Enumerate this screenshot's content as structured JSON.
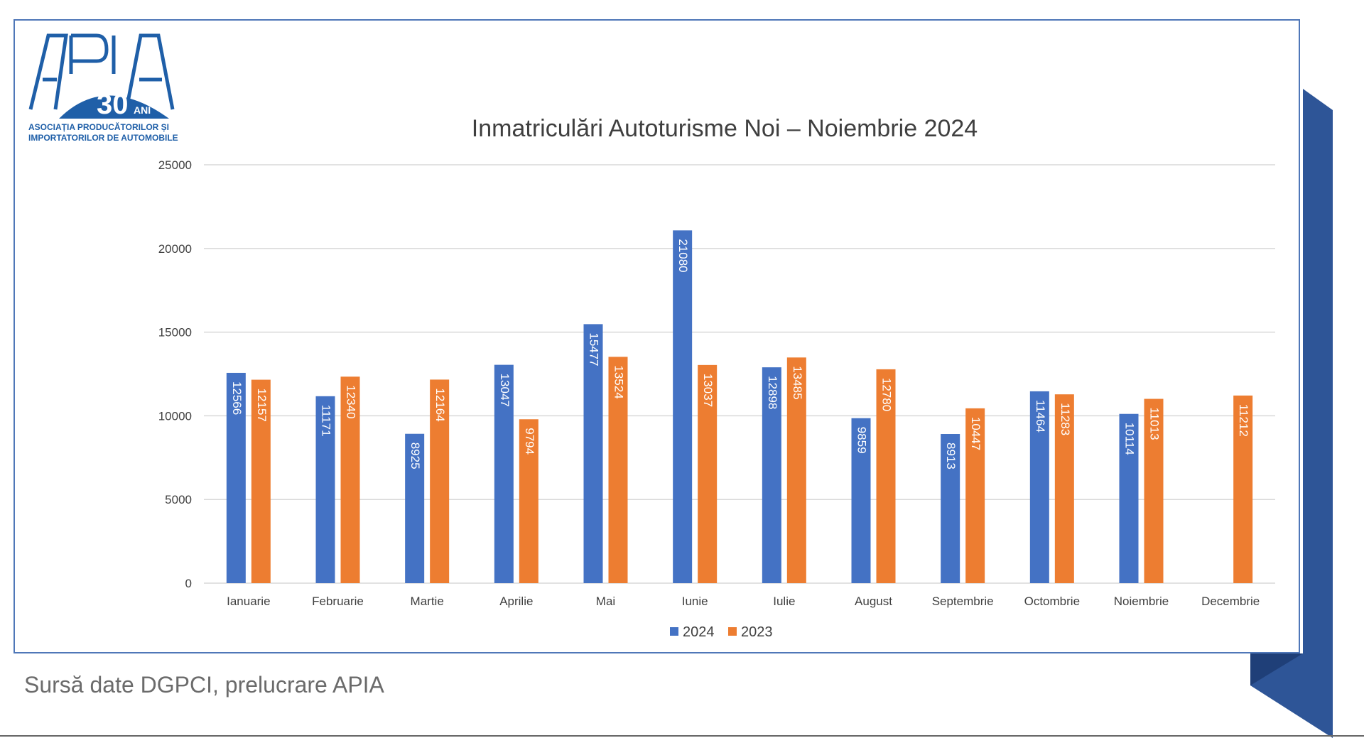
{
  "logo": {
    "name": "APIA",
    "badge": "30",
    "badge_suffix": "ANI",
    "org_line_1": "ASOCIAȚIA PRODUCĂTORILOR ȘI",
    "org_line_2": "IMPORTATORILOR DE AUTOMOBILE",
    "color": "#1f5fa8"
  },
  "footer": {
    "source": "Sursă date DGPCI, prelucrare APIA"
  },
  "colors": {
    "frame": "#4f77b8",
    "accent_dark": "#2e5597"
  },
  "chart_data": {
    "type": "bar",
    "title": "Inmatriculări Autoturisme Noi – Noiembrie 2024",
    "categories": [
      "Ianuarie",
      "Februarie",
      "Martie",
      "Aprilie",
      "Mai",
      "Iunie",
      "Iulie",
      "August",
      "Septembrie",
      "Octombrie",
      "Noiembrie",
      "Decembrie"
    ],
    "series": [
      {
        "name": "2024",
        "color": "#4472c4",
        "values": [
          12566,
          11171,
          8925,
          13047,
          15477,
          21080,
          12898,
          9859,
          8913,
          11464,
          10114,
          null
        ]
      },
      {
        "name": "2023",
        "color": "#ed7d31",
        "values": [
          12157,
          12340,
          12164,
          9794,
          13524,
          13037,
          13485,
          12780,
          10447,
          11283,
          11013,
          11212
        ]
      }
    ],
    "ylim": [
      0,
      25000
    ],
    "yticks": [
      0,
      5000,
      10000,
      15000,
      20000,
      25000
    ],
    "grid": true,
    "legend": "bottom",
    "data_labels": "inside-end, rotated"
  }
}
